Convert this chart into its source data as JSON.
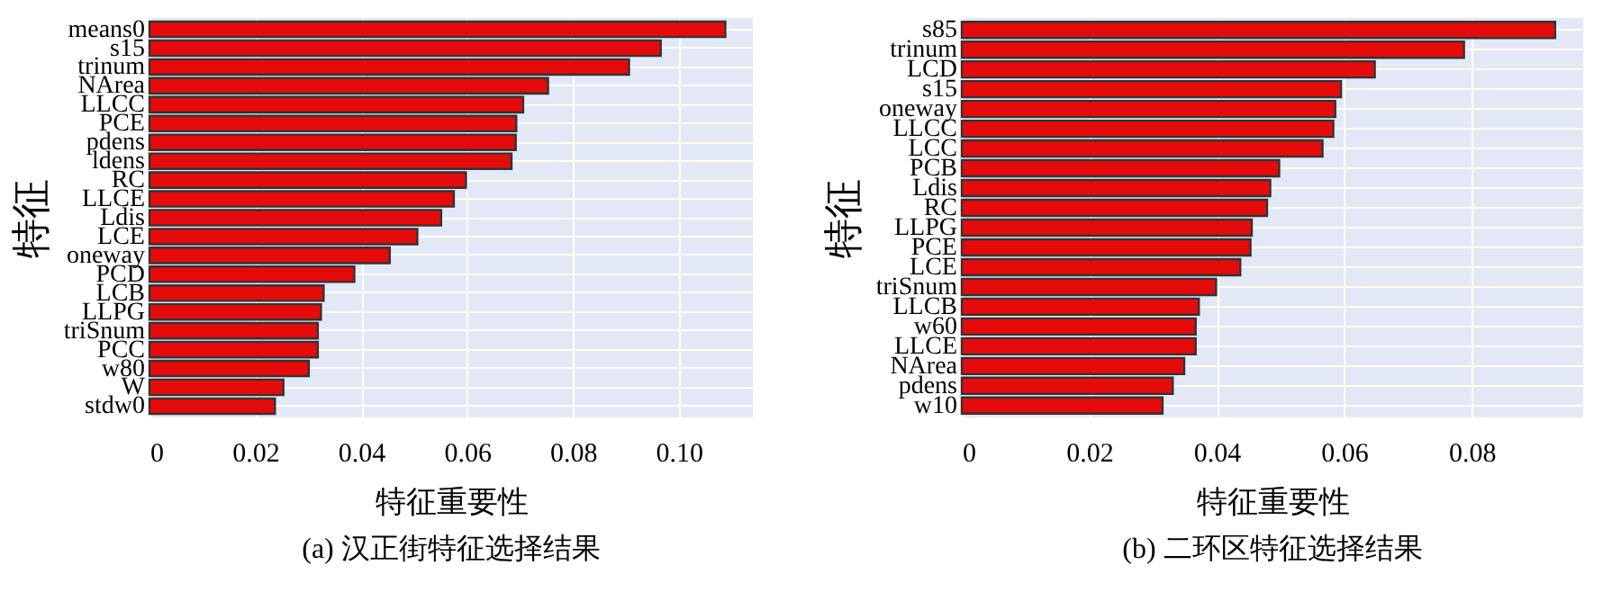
{
  "chart_data": [
    {
      "type": "bar",
      "orientation": "horizontal",
      "title": "(a) 汉正街特征选择结果",
      "xlabel": "特征重要性",
      "ylabel": "特征",
      "grid": true,
      "categories": [
        "means0",
        "s15",
        "trinum",
        "NArea",
        "LLCC",
        "PCE",
        "pdens",
        "ldens",
        "RC",
        "LLCE",
        "Ldis",
        "LCE",
        "oneway",
        "PCD",
        "LCB",
        "LLPG",
        "triSnum",
        "PCC",
        "w80",
        "W",
        "stdw0"
      ],
      "series": [
        {
          "color": "#e60b0b",
          "values": [
            0.1088,
            0.0966,
            0.0906,
            0.0753,
            0.0706,
            0.0693,
            0.0692,
            0.0684,
            0.0598,
            0.0575,
            0.0551,
            0.0506,
            0.0454,
            0.0387,
            0.0329,
            0.0324,
            0.0318,
            0.0318,
            0.0301,
            0.0253,
            0.0237
          ]
        }
      ],
      "xlim": [
        0,
        0.114
      ],
      "xticks": [
        0,
        0.02,
        0.04,
        0.06,
        0.08,
        {
          "value": 0.1,
          "label": "0.10"
        }
      ]
    },
    {
      "type": "bar",
      "orientation": "horizontal",
      "title": "(b) 二环区特征选择结果",
      "xlabel": "特征重要性",
      "ylabel": "特征",
      "grid": true,
      "categories": [
        "s85",
        "trinum",
        "LCD",
        "s15",
        "oneway",
        "LLCC",
        "LCC",
        "PCB",
        "Ldis",
        "RC",
        "LLPG",
        "PCE",
        "LCE",
        "triSnum",
        "LLCB",
        "w60",
        "LLCE",
        "NArea",
        "pdens",
        "w10"
      ],
      "series": [
        {
          "color": "#e60b0b",
          "values": [
            0.0931,
            0.0788,
            0.0648,
            0.0595,
            0.0586,
            0.0583,
            0.0566,
            0.0498,
            0.0484,
            0.0479,
            0.0455,
            0.0453,
            0.0437,
            0.0399,
            0.0372,
            0.0367,
            0.0367,
            0.0349,
            0.0331,
            0.0315
          ]
        }
      ],
      "xlim": [
        0,
        0.0975
      ],
      "xticks": [
        0,
        0.02,
        0.04,
        0.06,
        0.08
      ]
    }
  ]
}
